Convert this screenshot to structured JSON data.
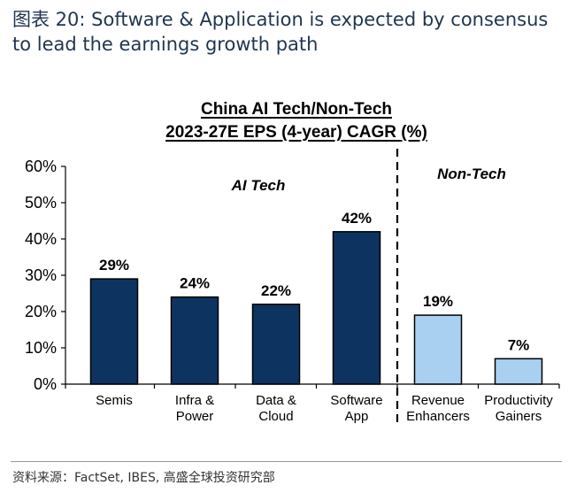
{
  "figure": {
    "title_line1": "图表 20: Software & Application is expected by consensus",
    "title_line2": "to lead the earnings growth path"
  },
  "chart_data": {
    "type": "bar",
    "title": "China AI Tech/Non-Tech",
    "subtitle": "2023-27E EPS (4-year) CAGR (%)",
    "categories": [
      "Semis",
      "Infra & Power",
      "Data & Cloud",
      "Software App",
      "Revenue Enhancers",
      "Productivity Gainers"
    ],
    "category_lines": [
      [
        "Semis"
      ],
      [
        "Infra &",
        "Power"
      ],
      [
        "Data &",
        "Cloud"
      ],
      [
        "Software",
        "App"
      ],
      [
        "Revenue",
        "Enhancers"
      ],
      [
        "Productivity",
        "Gainers"
      ]
    ],
    "values": [
      29,
      24,
      22,
      42,
      19,
      7
    ],
    "value_labels": [
      "29%",
      "24%",
      "22%",
      "42%",
      "19%",
      "7%"
    ],
    "groups": [
      {
        "name": "AI Tech",
        "count": 4,
        "color": "#0d3461"
      },
      {
        "name": "Non-Tech",
        "count": 2,
        "color": "#a9d0f0"
      }
    ],
    "ylim": [
      0,
      60
    ],
    "yticks": [
      0,
      10,
      20,
      30,
      40,
      50,
      60
    ],
    "ytick_labels": [
      "0%",
      "10%",
      "20%",
      "30%",
      "40%",
      "50%",
      "60%"
    ],
    "xlabel": "",
    "ylabel": "",
    "grid": false,
    "legend": "none"
  },
  "source": "资料来源：FactSet, IBES, 高盛全球投资研究部"
}
